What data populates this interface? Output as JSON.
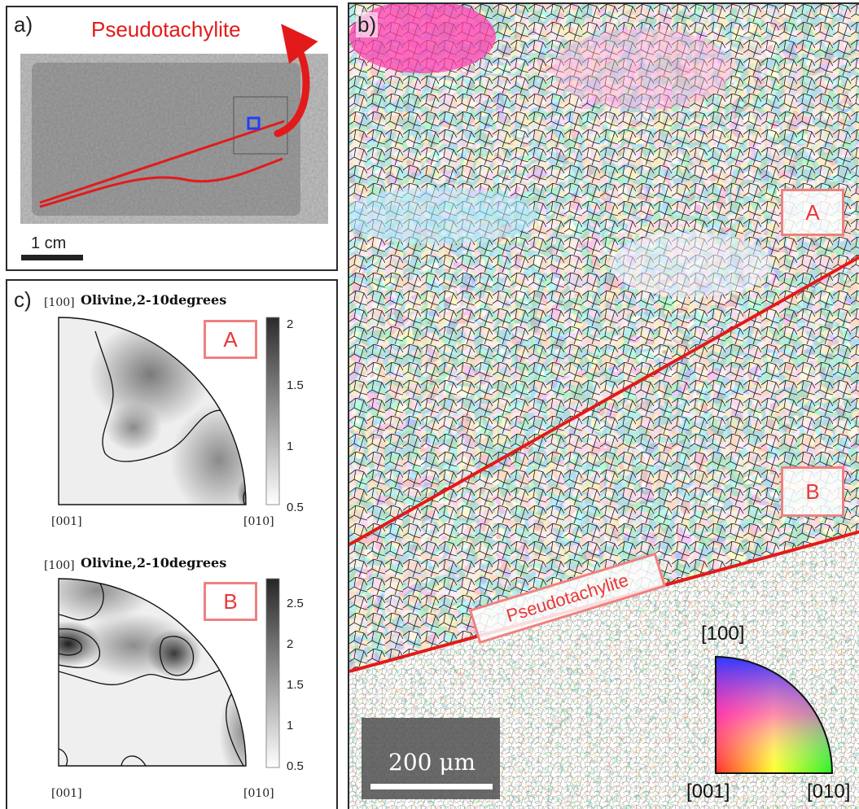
{
  "panel_a": {
    "label": "a)",
    "annotation": "Pseudotachylite",
    "scalebar_label": "1 cm",
    "colors": {
      "vein": "#e31a1a",
      "marker": "#1f3fff"
    }
  },
  "panel_b": {
    "label": "b)",
    "region_a": "A",
    "region_b": "B",
    "vein_label": "Pseudotachylite",
    "scalebar_label": "200 μm",
    "ipf_key": {
      "top": "[100]",
      "left": "[001]",
      "right": "[010]"
    }
  },
  "panel_c": {
    "label": "c)",
    "plot_a": {
      "title": "Olivine,2-10degrees",
      "dir_top": "[100]",
      "dir_left": "[001]",
      "dir_right": "[010]",
      "tag": "A",
      "colorbar_ticks": [
        "2",
        "1.5",
        "1",
        "0.5"
      ]
    },
    "plot_b": {
      "title": "Olivine,2-10degrees",
      "dir_top": "[100]",
      "dir_left": "[001]",
      "dir_right": "[010]",
      "tag": "B",
      "colorbar_ticks": [
        "2.5",
        "2",
        "1.5",
        "1",
        "0.5"
      ]
    }
  }
}
